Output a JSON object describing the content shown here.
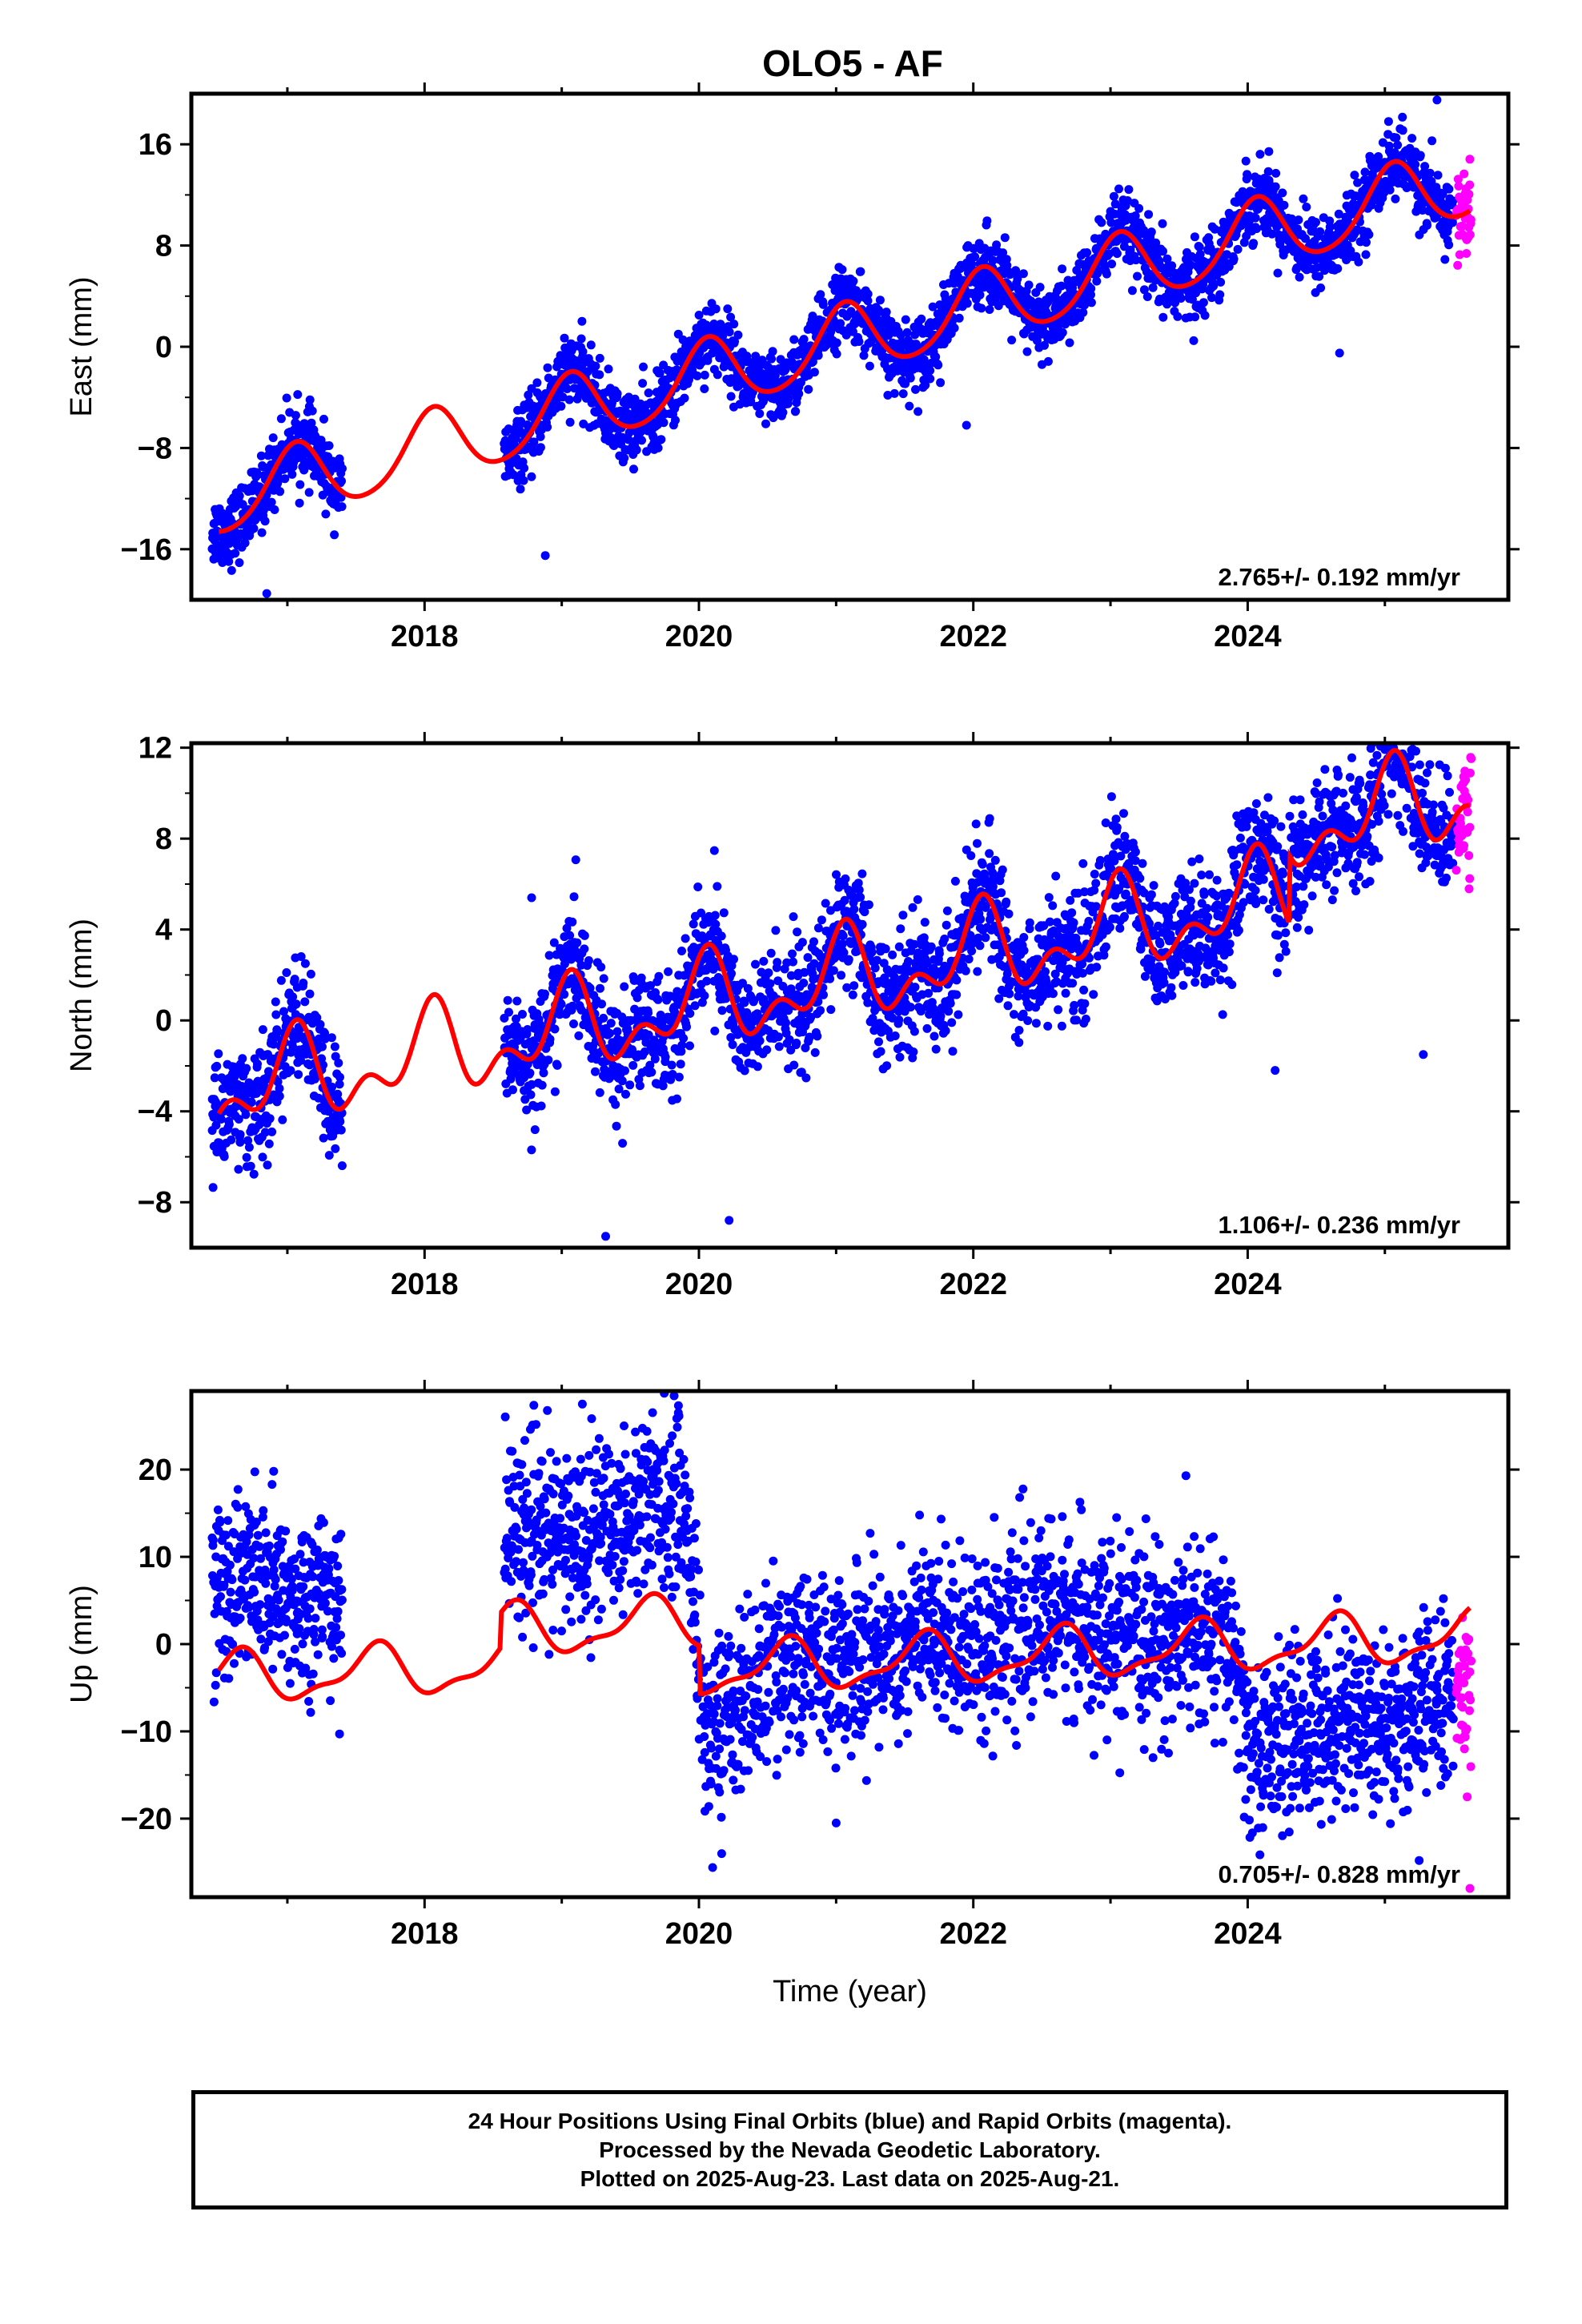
{
  "title": "OLO5 - AF",
  "colors": {
    "final": "#0000ff",
    "rapid": "#ff00ff",
    "model": "#ff0000",
    "frame": "#000000"
  },
  "chart_data": [
    {
      "type": "scatter",
      "ylabel": "East (mm)",
      "xlim": [
        2016.3,
        2025.9
      ],
      "ylim": [
        -20,
        20
      ],
      "x_ticks": [
        2018,
        2020,
        2022,
        2024
      ],
      "y_ticks": [
        -16,
        -8,
        0,
        8,
        16
      ],
      "y_tick_labels": [
        "−16",
        "−8",
        "0",
        "8",
        "16"
      ],
      "rate_label": "2.765+/- 0.192 mm/yr",
      "model": {
        "ref_year": 2016.5,
        "rate": 2.765,
        "offset": -12.2,
        "annual_sin": 1.0,
        "annual_cos": 2.6,
        "semiannual_sin": 0.3,
        "semiannual_cos": 0.2
      },
      "series": [
        {
          "name": "Final Orbits",
          "color": "blue",
          "segments": [
            [
              2016.45,
              2017.4
            ],
            [
              2018.58,
              2025.5
            ]
          ],
          "scatter": 1.4,
          "outliers": [
            [
              2016.85,
              -19.5
            ],
            [
              2018.88,
              -16.5
            ],
            [
              2024.67,
              -0.5
            ],
            [
              2025.38,
              19.5
            ],
            [
              2021.95,
              -6.2
            ]
          ]
        },
        {
          "name": "Rapid Orbits",
          "color": "magenta",
          "segments": [
            [
              2025.52,
              2025.63
            ]
          ],
          "scatter": 1.8
        }
      ]
    },
    {
      "type": "scatter",
      "ylabel": "North (mm)",
      "xlim": [
        2016.3,
        2025.9
      ],
      "ylim": [
        -10,
        12.2
      ],
      "x_ticks": [
        2018,
        2020,
        2022,
        2024
      ],
      "y_ticks": [
        -8,
        -4,
        0,
        4,
        8,
        12
      ],
      "y_tick_labels": [
        "−8",
        "−4",
        "0",
        "4",
        "8",
        "12"
      ],
      "rate_label": "1.106+/- 0.236 mm/yr",
      "model": {
        "ref_year": 2016.5,
        "rate": 1.106,
        "offset": -3.2,
        "annual_sin": 0.4,
        "annual_cos": 1.5,
        "semiannual_sin": 0.9,
        "semiannual_cos": 0.6,
        "steps": [
          [
            2024.3,
            3.0
          ]
        ]
      },
      "series": [
        {
          "name": "Final Orbits",
          "color": "blue",
          "segments": [
            [
              2016.45,
              2017.4
            ],
            [
              2018.58,
              2025.5
            ]
          ],
          "scatter": 1.3,
          "outliers": [
            [
              2018.78,
              5.4
            ],
            [
              2019.32,
              -9.5
            ],
            [
              2020.22,
              -8.8
            ],
            [
              2023.92,
              9.0
            ],
            [
              2024.2,
              -2.2
            ],
            [
              2025.28,
              -1.5
            ],
            [
              2022.8,
              6.9
            ]
          ]
        },
        {
          "name": "Rapid Orbits",
          "color": "magenta",
          "segments": [
            [
              2025.52,
              2025.63
            ]
          ],
          "scatter": 1.6
        }
      ]
    },
    {
      "type": "scatter",
      "ylabel": "Up (mm)",
      "xlabel": "Time (year)",
      "xlim": [
        2016.3,
        2025.9
      ],
      "ylim": [
        -29,
        29
      ],
      "x_ticks": [
        2018,
        2020,
        2022,
        2024
      ],
      "y_ticks": [
        -20,
        -10,
        0,
        10,
        20
      ],
      "y_tick_labels": [
        "−20",
        "−10",
        "0",
        "10",
        "20"
      ],
      "rate_label": "0.705+/- 0.828 mm/yr",
      "model": {
        "ref_year": 2016.5,
        "rate": 0.705,
        "offset": -4.0,
        "annual_sin": -2.0,
        "annual_cos": -1.8,
        "semiannual_sin": 0.6,
        "semiannual_cos": -0.8,
        "steps": [
          [
            2018.55,
            4.0
          ],
          [
            2020.0,
            -5.5
          ]
        ]
      },
      "series": [
        {
          "name": "Final Orbits",
          "color": "blue",
          "segments": [
            [
              2016.45,
              2017.4
            ],
            [
              2018.58,
              2025.5
            ]
          ],
          "scatter": 5.0,
          "levels": [
            [
              2016.45,
              6.0
            ],
            [
              2017.4,
              6.0
            ],
            [
              2018.58,
              10.0
            ],
            [
              2019.9,
              15.0
            ],
            [
              2020.05,
              -9.0
            ],
            [
              2020.6,
              -2.0
            ],
            [
              2022.5,
              3.0
            ],
            [
              2023.9,
              0.0
            ],
            [
              2024.0,
              -11.0
            ],
            [
              2025.5,
              -6.0
            ]
          ],
          "outliers": [
            [
              2016.9,
              19.8
            ],
            [
              2017.38,
              -10.3
            ],
            [
              2019.15,
              27.5
            ],
            [
              2019.85,
              26.5
            ],
            [
              2020.1,
              -25.6
            ],
            [
              2021.0,
              -20.5
            ],
            [
              2023.55,
              19.3
            ],
            [
              2025.25,
              -24.8
            ]
          ]
        },
        {
          "name": "Rapid Orbits",
          "color": "magenta",
          "segments": [
            [
              2025.52,
              2025.63
            ]
          ],
          "scatter": 4.0,
          "levels": [
            [
              2025.52,
              -5.0
            ],
            [
              2025.63,
              -5.0
            ]
          ],
          "outliers": [
            [
              2025.6,
              -17.5
            ],
            [
              2025.62,
              -28.0
            ],
            [
              2025.58,
              -12.0
            ]
          ]
        }
      ]
    }
  ],
  "caption": {
    "line1": "24 Hour Positions Using Final Orbits (blue) and Rapid Orbits (magenta).",
    "line2": "Processed by the Nevada Geodetic Laboratory.",
    "line3": "Plotted on 2025-Aug-23. Last data on 2025-Aug-21."
  }
}
